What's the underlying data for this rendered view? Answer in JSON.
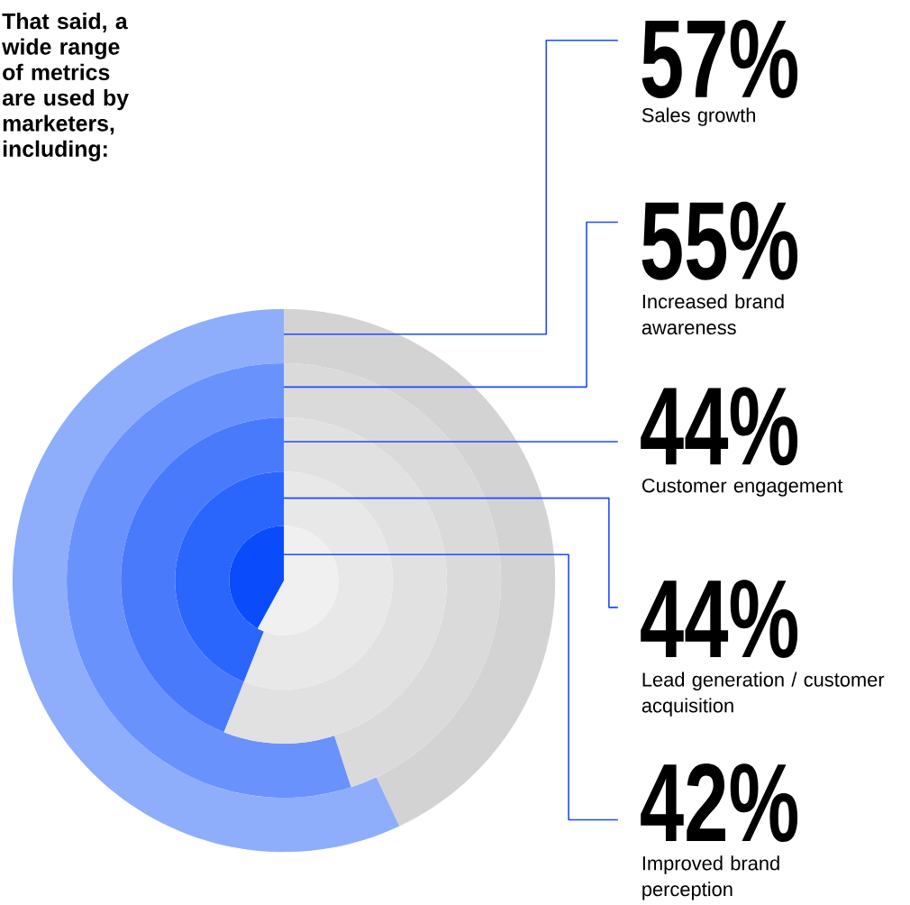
{
  "chart_data": {
    "type": "other",
    "title": "That said, a wide range of metrics are used by marketers, including:",
    "categories": [
      "Sales growth",
      "Increased brand awareness",
      "Customer engagement",
      "Lead generation / customer acquisition",
      "Improved brand perception"
    ],
    "values": [
      57,
      55,
      44,
      44,
      42
    ],
    "value_labels": [
      "57%",
      "55%",
      "44%",
      "44%",
      "42%"
    ],
    "colors": [
      "#8eaefc",
      "#6a92fc",
      "#4a7afc",
      "#2a66fc",
      "#0a4cfc"
    ],
    "data_labels": true
  }
}
